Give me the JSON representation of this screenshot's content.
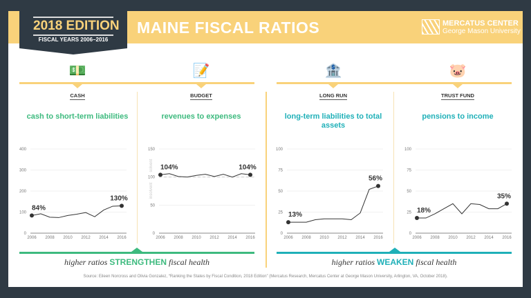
{
  "header": {
    "edition": "2018 EDITION",
    "fiscal_years": "FISCAL YEARS 2006–2016",
    "title": "MAINE FISCAL RATIOS",
    "logo_line1": "MERCATUS CENTER",
    "logo_line2": "George Mason University"
  },
  "colors": {
    "background": "#2f3a44",
    "accent_yellow": "#f9d27a",
    "green": "#3dba7e",
    "teal": "#1fb0b8",
    "line": "#333333"
  },
  "panels": [
    {
      "category": "CASH",
      "subtitle": "cash to short-term liabilities",
      "icon": "cash-coins-icon",
      "color": "#3dba7e"
    },
    {
      "category": "BUDGET",
      "subtitle": "revenues to expenses",
      "icon": "budget-document-icon",
      "color": "#3dba7e"
    },
    {
      "category": "LONG RUN",
      "subtitle": "long-term liabilities to total assets",
      "icon": "money-stacks-icon",
      "color": "#1fb0b8"
    },
    {
      "category": "TRUST FUND",
      "subtitle": "pensions to income",
      "icon": "piggy-bank-icon",
      "color": "#1fb0b8"
    }
  ],
  "notes": {
    "left_pre": "higher ratios",
    "left_key": "STRENGTHEN",
    "left_post": "fiscal health",
    "right_pre": "higher ratios",
    "right_key": "WEAKEN",
    "right_post": "fiscal health"
  },
  "source": "Source: Eileen Norcross and Olivia Gonzalez, “Ranking the States by Fiscal Condition, 2018 Edition” (Mercatus Research, Mercatus Center at George Mason University, Arlington, VA, October 2018).",
  "chart_data": [
    {
      "type": "line",
      "x": [
        2006,
        2007,
        2008,
        2009,
        2010,
        2011,
        2012,
        2013,
        2014,
        2015,
        2016
      ],
      "values": [
        84,
        92,
        76,
        74,
        84,
        90,
        98,
        78,
        110,
        128,
        130
      ],
      "ylim": [
        0,
        400
      ],
      "yticks": [
        0,
        100,
        200,
        300,
        400
      ],
      "xticks": [
        2006,
        2008,
        2010,
        2012,
        2014,
        2016
      ],
      "labels": [
        "84%",
        "130%"
      ],
      "grid": true
    },
    {
      "type": "line",
      "x": [
        2006,
        2007,
        2008,
        2009,
        2010,
        2011,
        2012,
        2013,
        2014,
        2015,
        2016
      ],
      "values": [
        104,
        106,
        101,
        100,
        103,
        105,
        101,
        105,
        100,
        106,
        104
      ],
      "ylim": [
        0,
        150
      ],
      "yticks": [
        0,
        50,
        100,
        150
      ],
      "xticks": [
        2006,
        2008,
        2010,
        2012,
        2014,
        2016
      ],
      "labels": [
        "104%",
        "104%"
      ],
      "grid": true,
      "threshold": 100,
      "threshold_labels": [
        "solvent",
        "insolvent"
      ]
    },
    {
      "type": "line",
      "x": [
        2006,
        2007,
        2008,
        2009,
        2010,
        2011,
        2012,
        2013,
        2014,
        2015,
        2016
      ],
      "values": [
        13,
        13,
        13,
        16,
        17,
        17,
        17,
        16,
        24,
        52,
        56
      ],
      "ylim": [
        0,
        100
      ],
      "yticks": [
        0,
        25,
        50,
        75,
        100
      ],
      "xticks": [
        2006,
        2008,
        2010,
        2012,
        2014,
        2016
      ],
      "labels": [
        "13%",
        "56%"
      ],
      "grid": true
    },
    {
      "type": "line",
      "x": [
        2006,
        2007,
        2008,
        2009,
        2010,
        2011,
        2012,
        2013,
        2014,
        2015,
        2016
      ],
      "values": [
        18,
        18,
        23,
        29,
        35,
        23,
        35,
        34,
        29,
        29,
        35
      ],
      "ylim": [
        0,
        100
      ],
      "yticks": [
        0,
        25,
        50,
        75,
        100
      ],
      "xticks": [
        2006,
        2008,
        2010,
        2012,
        2014,
        2016
      ],
      "labels": [
        "18%",
        "35%"
      ],
      "grid": true
    }
  ]
}
